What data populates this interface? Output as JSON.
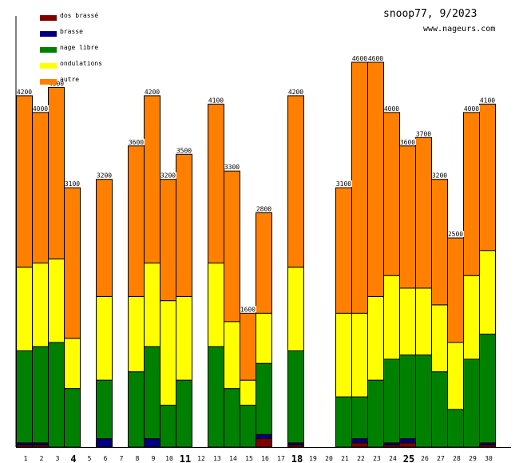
{
  "header": {
    "title": "snoop77, 9/2023",
    "site": "www.nageurs.com"
  },
  "chart_data": {
    "type": "bar",
    "stacked": true,
    "title": "snoop77, 9/2023",
    "xlabel": "",
    "ylabel": "",
    "ylim": [
      0,
      5000
    ],
    "legend_position": "top-left",
    "categories": [
      "1",
      "2",
      "3",
      "4",
      "5",
      "6",
      "7",
      "8",
      "9",
      "10",
      "11",
      "12",
      "13",
      "14",
      "15",
      "16",
      "17",
      "18",
      "19",
      "20",
      "21",
      "22",
      "23",
      "24",
      "25",
      "26",
      "27",
      "28",
      "29",
      "30"
    ],
    "highlighted_categories": [
      "4",
      "11",
      "18",
      "25"
    ],
    "totals": [
      4200,
      4000,
      4300,
      3100,
      0,
      3200,
      0,
      3600,
      4200,
      3200,
      3500,
      0,
      4100,
      3300,
      1600,
      2800,
      0,
      4200,
      0,
      0,
      3100,
      4600,
      4600,
      4000,
      3600,
      3700,
      3200,
      2500,
      4000,
      4100
    ],
    "series": [
      {
        "name": "dos brassé",
        "color": "#800000",
        "values": [
          25,
          25,
          0,
          0,
          0,
          0,
          0,
          0,
          0,
          0,
          0,
          0,
          0,
          0,
          0,
          100,
          0,
          25,
          0,
          0,
          0,
          50,
          0,
          25,
          50,
          0,
          0,
          0,
          0,
          25
        ]
      },
      {
        "name": "brasse",
        "color": "#000080",
        "values": [
          25,
          25,
          0,
          0,
          0,
          100,
          0,
          0,
          100,
          0,
          0,
          0,
          0,
          0,
          0,
          50,
          0,
          25,
          0,
          0,
          0,
          50,
          0,
          25,
          50,
          0,
          0,
          0,
          0,
          25
        ]
      },
      {
        "name": "nage libre",
        "color": "#008000",
        "values": [
          1100,
          1150,
          1250,
          700,
          0,
          700,
          0,
          900,
          1100,
          500,
          800,
          0,
          1200,
          700,
          500,
          850,
          0,
          1100,
          0,
          0,
          600,
          500,
          800,
          1000,
          1000,
          1100,
          900,
          450,
          1050,
          1300
        ]
      },
      {
        "name": "ondulations",
        "color": "#ffff00",
        "values": [
          1000,
          1000,
          1000,
          600,
          0,
          1000,
          0,
          900,
          1000,
          1250,
          1000,
          0,
          1000,
          800,
          300,
          600,
          0,
          1000,
          0,
          0,
          1000,
          1000,
          1000,
          1000,
          800,
          800,
          800,
          800,
          1000,
          1000
        ]
      },
      {
        "name": "autre",
        "color": "#ff8000",
        "values": [
          2050,
          1800,
          2050,
          1800,
          0,
          1400,
          0,
          1800,
          2000,
          1450,
          1700,
          0,
          1900,
          1800,
          800,
          1200,
          0,
          2050,
          0,
          0,
          1500,
          3000,
          2800,
          1950,
          1700,
          1800,
          1500,
          1250,
          1950,
          1750
        ]
      }
    ]
  }
}
